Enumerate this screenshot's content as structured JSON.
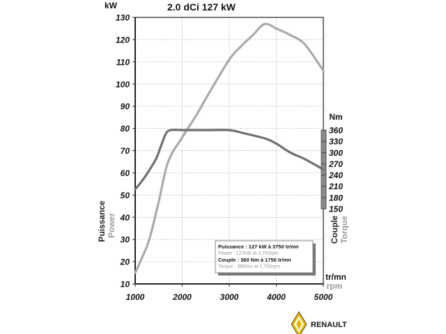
{
  "chart_data": {
    "type": "line",
    "title": "2.0 dCi 127 kW",
    "x_label_primary": "tr/mn",
    "x_label_secondary": "rpm",
    "x_ticks": [
      1000,
      2000,
      3000,
      4000,
      5000
    ],
    "xlim": [
      1000,
      5000
    ],
    "grid": true,
    "y_left": {
      "unit": "kW",
      "label_primary": "Puissance",
      "label_secondary": "Power",
      "ticks": [
        10,
        20,
        30,
        40,
        50,
        60,
        70,
        80,
        90,
        100,
        110,
        120,
        130
      ],
      "ylim": [
        10,
        130
      ]
    },
    "y_right": {
      "unit": "Nm",
      "label_primary": "Couple",
      "label_secondary": "Torque",
      "ticks": [
        150,
        180,
        210,
        240,
        270,
        300,
        330,
        360
      ],
      "ylim": [
        150,
        360
      ]
    },
    "series": [
      {
        "name": "Power",
        "axis": "left",
        "color": "#a9a9a9",
        "x": [
          1000,
          1150,
          1300,
          1500,
          1700,
          2000,
          2300,
          2600,
          3000,
          3250,
          3500,
          3750,
          4000,
          4300,
          4600,
          5000
        ],
        "y": [
          15,
          22,
          30,
          47,
          65,
          76,
          86,
          97,
          111,
          117,
          122,
          127,
          125,
          122,
          118,
          106
        ]
      },
      {
        "name": "Torque",
        "axis": "right",
        "color": "#707070",
        "x": [
          1000,
          1150,
          1300,
          1450,
          1550,
          1650,
          1750,
          2000,
          2500,
          3000,
          3300,
          3600,
          3800,
          4000,
          4300,
          4600,
          5000
        ],
        "y": [
          202,
          225,
          253,
          285,
          318,
          350,
          360,
          360,
          360,
          360,
          352,
          343,
          336,
          324,
          300,
          283,
          255
        ]
      }
    ],
    "annotations": {
      "line1": "Puissance : 127 kW à 3750 tr/mn",
      "line2": "Power : 127kW at 3,750rpm",
      "line3": "Couple : 360 Nm à 1750 tr/mn",
      "line4": "Torque : 360Nm at 1,750rpm"
    }
  },
  "brand": {
    "name": "RENAULT"
  }
}
